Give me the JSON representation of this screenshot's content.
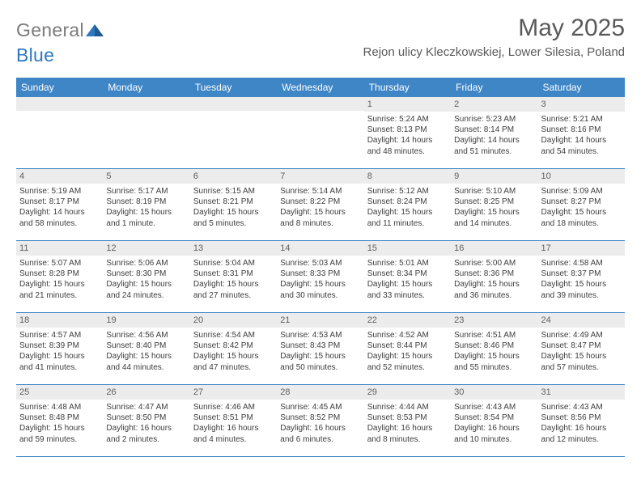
{
  "brand": {
    "part1": "General",
    "part2": "Blue"
  },
  "title": "May 2025",
  "location": "Rejon ulicy Kleczkowskiej, Lower Silesia, Poland",
  "colors": {
    "header_bar": "#3f86c7",
    "header_text": "#595959",
    "brand_grey": "#7a7a7a",
    "brand_blue": "#2f78bf",
    "daynum_bg": "#ececec",
    "body_text": "#3d3d3d"
  },
  "dow": [
    "Sunday",
    "Monday",
    "Tuesday",
    "Wednesday",
    "Thursday",
    "Friday",
    "Saturday"
  ],
  "weeks": [
    [
      {
        "n": "",
        "lines": []
      },
      {
        "n": "",
        "lines": []
      },
      {
        "n": "",
        "lines": []
      },
      {
        "n": "",
        "lines": []
      },
      {
        "n": "1",
        "lines": [
          "Sunrise: 5:24 AM",
          "Sunset: 8:13 PM",
          "Daylight: 14 hours and 48 minutes."
        ]
      },
      {
        "n": "2",
        "lines": [
          "Sunrise: 5:23 AM",
          "Sunset: 8:14 PM",
          "Daylight: 14 hours and 51 minutes."
        ]
      },
      {
        "n": "3",
        "lines": [
          "Sunrise: 5:21 AM",
          "Sunset: 8:16 PM",
          "Daylight: 14 hours and 54 minutes."
        ]
      }
    ],
    [
      {
        "n": "4",
        "lines": [
          "Sunrise: 5:19 AM",
          "Sunset: 8:17 PM",
          "Daylight: 14 hours and 58 minutes."
        ]
      },
      {
        "n": "5",
        "lines": [
          "Sunrise: 5:17 AM",
          "Sunset: 8:19 PM",
          "Daylight: 15 hours and 1 minute."
        ]
      },
      {
        "n": "6",
        "lines": [
          "Sunrise: 5:15 AM",
          "Sunset: 8:21 PM",
          "Daylight: 15 hours and 5 minutes."
        ]
      },
      {
        "n": "7",
        "lines": [
          "Sunrise: 5:14 AM",
          "Sunset: 8:22 PM",
          "Daylight: 15 hours and 8 minutes."
        ]
      },
      {
        "n": "8",
        "lines": [
          "Sunrise: 5:12 AM",
          "Sunset: 8:24 PM",
          "Daylight: 15 hours and 11 minutes."
        ]
      },
      {
        "n": "9",
        "lines": [
          "Sunrise: 5:10 AM",
          "Sunset: 8:25 PM",
          "Daylight: 15 hours and 14 minutes."
        ]
      },
      {
        "n": "10",
        "lines": [
          "Sunrise: 5:09 AM",
          "Sunset: 8:27 PM",
          "Daylight: 15 hours and 18 minutes."
        ]
      }
    ],
    [
      {
        "n": "11",
        "lines": [
          "Sunrise: 5:07 AM",
          "Sunset: 8:28 PM",
          "Daylight: 15 hours and 21 minutes."
        ]
      },
      {
        "n": "12",
        "lines": [
          "Sunrise: 5:06 AM",
          "Sunset: 8:30 PM",
          "Daylight: 15 hours and 24 minutes."
        ]
      },
      {
        "n": "13",
        "lines": [
          "Sunrise: 5:04 AM",
          "Sunset: 8:31 PM",
          "Daylight: 15 hours and 27 minutes."
        ]
      },
      {
        "n": "14",
        "lines": [
          "Sunrise: 5:03 AM",
          "Sunset: 8:33 PM",
          "Daylight: 15 hours and 30 minutes."
        ]
      },
      {
        "n": "15",
        "lines": [
          "Sunrise: 5:01 AM",
          "Sunset: 8:34 PM",
          "Daylight: 15 hours and 33 minutes."
        ]
      },
      {
        "n": "16",
        "lines": [
          "Sunrise: 5:00 AM",
          "Sunset: 8:36 PM",
          "Daylight: 15 hours and 36 minutes."
        ]
      },
      {
        "n": "17",
        "lines": [
          "Sunrise: 4:58 AM",
          "Sunset: 8:37 PM",
          "Daylight: 15 hours and 39 minutes."
        ]
      }
    ],
    [
      {
        "n": "18",
        "lines": [
          "Sunrise: 4:57 AM",
          "Sunset: 8:39 PM",
          "Daylight: 15 hours and 41 minutes."
        ]
      },
      {
        "n": "19",
        "lines": [
          "Sunrise: 4:56 AM",
          "Sunset: 8:40 PM",
          "Daylight: 15 hours and 44 minutes."
        ]
      },
      {
        "n": "20",
        "lines": [
          "Sunrise: 4:54 AM",
          "Sunset: 8:42 PM",
          "Daylight: 15 hours and 47 minutes."
        ]
      },
      {
        "n": "21",
        "lines": [
          "Sunrise: 4:53 AM",
          "Sunset: 8:43 PM",
          "Daylight: 15 hours and 50 minutes."
        ]
      },
      {
        "n": "22",
        "lines": [
          "Sunrise: 4:52 AM",
          "Sunset: 8:44 PM",
          "Daylight: 15 hours and 52 minutes."
        ]
      },
      {
        "n": "23",
        "lines": [
          "Sunrise: 4:51 AM",
          "Sunset: 8:46 PM",
          "Daylight: 15 hours and 55 minutes."
        ]
      },
      {
        "n": "24",
        "lines": [
          "Sunrise: 4:49 AM",
          "Sunset: 8:47 PM",
          "Daylight: 15 hours and 57 minutes."
        ]
      }
    ],
    [
      {
        "n": "25",
        "lines": [
          "Sunrise: 4:48 AM",
          "Sunset: 8:48 PM",
          "Daylight: 15 hours and 59 minutes."
        ]
      },
      {
        "n": "26",
        "lines": [
          "Sunrise: 4:47 AM",
          "Sunset: 8:50 PM",
          "Daylight: 16 hours and 2 minutes."
        ]
      },
      {
        "n": "27",
        "lines": [
          "Sunrise: 4:46 AM",
          "Sunset: 8:51 PM",
          "Daylight: 16 hours and 4 minutes."
        ]
      },
      {
        "n": "28",
        "lines": [
          "Sunrise: 4:45 AM",
          "Sunset: 8:52 PM",
          "Daylight: 16 hours and 6 minutes."
        ]
      },
      {
        "n": "29",
        "lines": [
          "Sunrise: 4:44 AM",
          "Sunset: 8:53 PM",
          "Daylight: 16 hours and 8 minutes."
        ]
      },
      {
        "n": "30",
        "lines": [
          "Sunrise: 4:43 AM",
          "Sunset: 8:54 PM",
          "Daylight: 16 hours and 10 minutes."
        ]
      },
      {
        "n": "31",
        "lines": [
          "Sunrise: 4:43 AM",
          "Sunset: 8:56 PM",
          "Daylight: 16 hours and 12 minutes."
        ]
      }
    ]
  ]
}
